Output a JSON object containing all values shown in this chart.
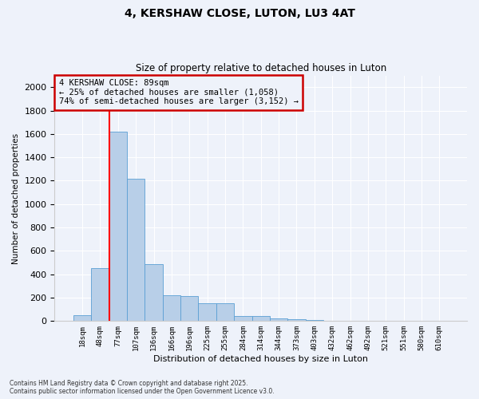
{
  "title1": "4, KERSHAW CLOSE, LUTON, LU3 4AT",
  "title2": "Size of property relative to detached houses in Luton",
  "xlabel": "Distribution of detached houses by size in Luton",
  "ylabel": "Number of detached properties",
  "categories": [
    "18sqm",
    "48sqm",
    "77sqm",
    "107sqm",
    "136sqm",
    "166sqm",
    "196sqm",
    "225sqm",
    "255sqm",
    "284sqm",
    "314sqm",
    "344sqm",
    "373sqm",
    "403sqm",
    "432sqm",
    "462sqm",
    "492sqm",
    "521sqm",
    "551sqm",
    "580sqm",
    "610sqm"
  ],
  "values": [
    50,
    450,
    1620,
    1220,
    490,
    220,
    215,
    155,
    155,
    45,
    45,
    25,
    15,
    10,
    5,
    3,
    2,
    1,
    1,
    0,
    0
  ],
  "bar_color": "#b8cfe8",
  "bar_edge_color": "#5a9fd4",
  "red_line_bar_index": 2,
  "red_line_label": "4 KERSHAW CLOSE: 89sqm",
  "annotation_line2": "← 25% of detached houses are smaller (1,058)",
  "annotation_line3": "74% of semi-detached houses are larger (3,152) →",
  "annotation_box_edgecolor": "#cc0000",
  "ylim": [
    0,
    2100
  ],
  "yticks": [
    0,
    200,
    400,
    600,
    800,
    1000,
    1200,
    1400,
    1600,
    1800,
    2000
  ],
  "footer1": "Contains HM Land Registry data © Crown copyright and database right 2025.",
  "footer2": "Contains public sector information licensed under the Open Government Licence v3.0.",
  "bg_color": "#eef2fa"
}
